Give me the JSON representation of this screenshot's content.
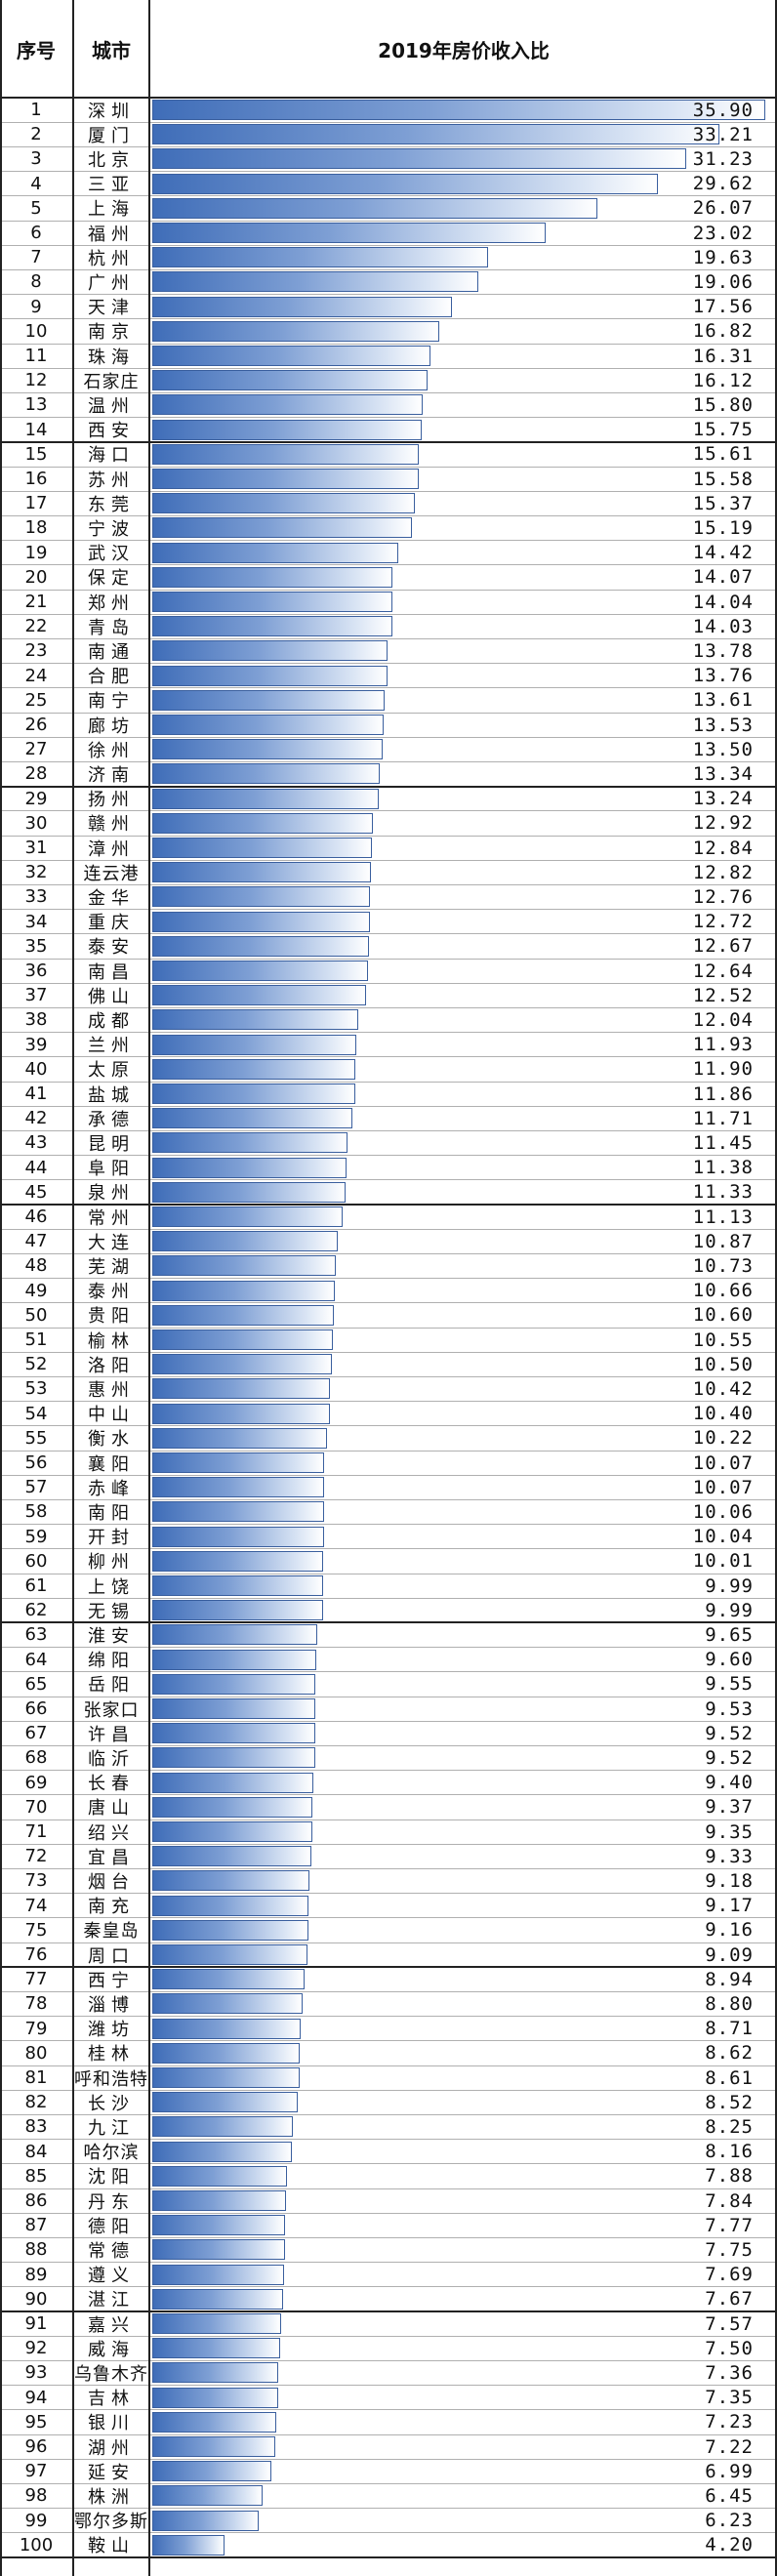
{
  "chart_data": {
    "type": "bar",
    "title": "2019年房价收入比",
    "headers": {
      "index": "序号",
      "city": "城市",
      "value": "2019年房价收入比"
    },
    "xlim": [
      0,
      36
    ],
    "rows": [
      {
        "rank": "1",
        "city": "深圳",
        "value": 35.9
      },
      {
        "rank": "2",
        "city": "厦门",
        "value": 33.21
      },
      {
        "rank": "3",
        "city": "北京",
        "value": 31.23
      },
      {
        "rank": "4",
        "city": "三亚",
        "value": 29.62
      },
      {
        "rank": "5",
        "city": "上海",
        "value": 26.07
      },
      {
        "rank": "6",
        "city": "福州",
        "value": 23.02
      },
      {
        "rank": "7",
        "city": "杭州",
        "value": 19.63
      },
      {
        "rank": "8",
        "city": "广州",
        "value": 19.06
      },
      {
        "rank": "9",
        "city": "天津",
        "value": 17.56
      },
      {
        "rank": "10",
        "city": "南京",
        "value": 16.82
      },
      {
        "rank": "11",
        "city": "珠海",
        "value": 16.31
      },
      {
        "rank": "12",
        "city": "石家庄",
        "value": 16.12
      },
      {
        "rank": "13",
        "city": "温州",
        "value": 15.8
      },
      {
        "rank": "14",
        "city": "西安",
        "value": 15.75
      },
      {
        "rank": "15",
        "city": "海口",
        "value": 15.61
      },
      {
        "rank": "16",
        "city": "苏州",
        "value": 15.58
      },
      {
        "rank": "17",
        "city": "东莞",
        "value": 15.37
      },
      {
        "rank": "18",
        "city": "宁波",
        "value": 15.19
      },
      {
        "rank": "19",
        "city": "武汉",
        "value": 14.42
      },
      {
        "rank": "20",
        "city": "保定",
        "value": 14.07
      },
      {
        "rank": "21",
        "city": "郑州",
        "value": 14.04
      },
      {
        "rank": "22",
        "city": "青岛",
        "value": 14.03
      },
      {
        "rank": "23",
        "city": "南通",
        "value": 13.78
      },
      {
        "rank": "24",
        "city": "合肥",
        "value": 13.76
      },
      {
        "rank": "25",
        "city": "南宁",
        "value": 13.61
      },
      {
        "rank": "26",
        "city": "廊坊",
        "value": 13.53
      },
      {
        "rank": "27",
        "city": "徐州",
        "value": 13.5
      },
      {
        "rank": "28",
        "city": "济南",
        "value": 13.34
      },
      {
        "rank": "29",
        "city": "扬州",
        "value": 13.24
      },
      {
        "rank": "30",
        "city": "赣州",
        "value": 12.92
      },
      {
        "rank": "31",
        "city": "漳州",
        "value": 12.84
      },
      {
        "rank": "32",
        "city": "连云港",
        "value": 12.82
      },
      {
        "rank": "33",
        "city": "金华",
        "value": 12.76
      },
      {
        "rank": "34",
        "city": "重庆",
        "value": 12.72
      },
      {
        "rank": "35",
        "city": "泰安",
        "value": 12.67
      },
      {
        "rank": "36",
        "city": "南昌",
        "value": 12.64
      },
      {
        "rank": "37",
        "city": "佛山",
        "value": 12.52
      },
      {
        "rank": "38",
        "city": "成都",
        "value": 12.04
      },
      {
        "rank": "39",
        "city": "兰州",
        "value": 11.93
      },
      {
        "rank": "40",
        "city": "太原",
        "value": 11.9
      },
      {
        "rank": "41",
        "city": "盐城",
        "value": 11.86
      },
      {
        "rank": "42",
        "city": "承德",
        "value": 11.71
      },
      {
        "rank": "43",
        "city": "昆明",
        "value": 11.45
      },
      {
        "rank": "44",
        "city": "阜阳",
        "value": 11.38
      },
      {
        "rank": "45",
        "city": "泉州",
        "value": 11.33
      },
      {
        "rank": "46",
        "city": "常州",
        "value": 11.13
      },
      {
        "rank": "47",
        "city": "大连",
        "value": 10.87
      },
      {
        "rank": "48",
        "city": "芜湖",
        "value": 10.73
      },
      {
        "rank": "49",
        "city": "泰州",
        "value": 10.66
      },
      {
        "rank": "50",
        "city": "贵阳",
        "value": 10.6
      },
      {
        "rank": "51",
        "city": "榆林",
        "value": 10.55
      },
      {
        "rank": "52",
        "city": "洛阳",
        "value": 10.5
      },
      {
        "rank": "53",
        "city": "惠州",
        "value": 10.42
      },
      {
        "rank": "54",
        "city": "中山",
        "value": 10.4
      },
      {
        "rank": "55",
        "city": "衡水",
        "value": 10.22
      },
      {
        "rank": "56",
        "city": "襄阳",
        "value": 10.07
      },
      {
        "rank": "57",
        "city": "赤峰",
        "value": 10.07
      },
      {
        "rank": "58",
        "city": "南阳",
        "value": 10.06
      },
      {
        "rank": "59",
        "city": "开封",
        "value": 10.04
      },
      {
        "rank": "60",
        "city": "柳州",
        "value": 10.01
      },
      {
        "rank": "61",
        "city": "上饶",
        "value": 9.99
      },
      {
        "rank": "62",
        "city": "无锡",
        "value": 9.99
      },
      {
        "rank": "63",
        "city": "淮安",
        "value": 9.65
      },
      {
        "rank": "64",
        "city": "绵阳",
        "value": 9.6
      },
      {
        "rank": "65",
        "city": "岳阳",
        "value": 9.55
      },
      {
        "rank": "66",
        "city": "张家口",
        "value": 9.53
      },
      {
        "rank": "67",
        "city": "许昌",
        "value": 9.52
      },
      {
        "rank": "68",
        "city": "临沂",
        "value": 9.52
      },
      {
        "rank": "69",
        "city": "长春",
        "value": 9.4
      },
      {
        "rank": "70",
        "city": "唐山",
        "value": 9.37
      },
      {
        "rank": "71",
        "city": "绍兴",
        "value": 9.35
      },
      {
        "rank": "72",
        "city": "宜昌",
        "value": 9.33
      },
      {
        "rank": "73",
        "city": "烟台",
        "value": 9.18
      },
      {
        "rank": "74",
        "city": "南充",
        "value": 9.17
      },
      {
        "rank": "75",
        "city": "秦皇岛",
        "value": 9.16
      },
      {
        "rank": "76",
        "city": "周口",
        "value": 9.09
      },
      {
        "rank": "77",
        "city": "西宁",
        "value": 8.94
      },
      {
        "rank": "78",
        "city": "淄博",
        "value": 8.8
      },
      {
        "rank": "79",
        "city": "潍坊",
        "value": 8.71
      },
      {
        "rank": "80",
        "city": "桂林",
        "value": 8.62
      },
      {
        "rank": "81",
        "city": "呼和浩特",
        "value": 8.61
      },
      {
        "rank": "82",
        "city": "长沙",
        "value": 8.52
      },
      {
        "rank": "83",
        "city": "九江",
        "value": 8.25
      },
      {
        "rank": "84",
        "city": "哈尔滨",
        "value": 8.16
      },
      {
        "rank": "85",
        "city": "沈阳",
        "value": 7.88
      },
      {
        "rank": "86",
        "city": "丹东",
        "value": 7.84
      },
      {
        "rank": "87",
        "city": "德阳",
        "value": 7.77
      },
      {
        "rank": "88",
        "city": "常德",
        "value": 7.75
      },
      {
        "rank": "89",
        "city": "遵义",
        "value": 7.69
      },
      {
        "rank": "90",
        "city": "湛江",
        "value": 7.67
      },
      {
        "rank": "91",
        "city": "嘉兴",
        "value": 7.57
      },
      {
        "rank": "92",
        "city": "威海",
        "value": 7.5
      },
      {
        "rank": "93",
        "city": "乌鲁木齐",
        "value": 7.36
      },
      {
        "rank": "94",
        "city": "吉林",
        "value": 7.35
      },
      {
        "rank": "95",
        "city": "银川",
        "value": 7.23
      },
      {
        "rank": "96",
        "city": "湖州",
        "value": 7.22
      },
      {
        "rank": "97",
        "city": "延安",
        "value": 6.99
      },
      {
        "rank": "98",
        "city": "株洲",
        "value": 6.45
      },
      {
        "rank": "99",
        "city": "鄂尔多斯",
        "value": 6.23
      },
      {
        "rank": "100",
        "city": "鞍山",
        "value": 4.2
      }
    ],
    "group_breaks": [
      14,
      28,
      45,
      62,
      76,
      90
    ],
    "colors": {
      "bar_dark": "#3f6db8",
      "bar_light": "#d9e4f4",
      "border": "#222222"
    }
  }
}
